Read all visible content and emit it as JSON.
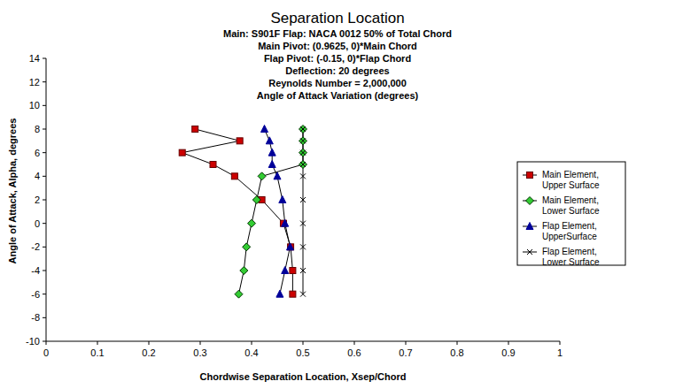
{
  "chart_data": {
    "type": "scatter",
    "title": "Separation Location",
    "subtitle": [
      "Main: S901F  Flap: NACA 0012  50% of Total Chord",
      "Main Pivot: (0.9625, 0)*Main Chord",
      "Flap Pivot: (-0.15, 0)*Flap Chord",
      "Deflection: 20 degrees",
      "Reynolds Number = 2,000,000",
      "Angle of Attack Variation (degrees)"
    ],
    "x_label": "Chordwise Separation Location, Xsep/Chord",
    "y_label": "Angle of Attack, Alpha, degrees",
    "xlim": [
      0,
      1
    ],
    "ylim": [
      -10,
      14
    ],
    "xticks": [
      0,
      0.1,
      0.2,
      0.3,
      0.4,
      0.5,
      0.6,
      0.7,
      0.8,
      0.9,
      1
    ],
    "yticks": [
      -10,
      -8,
      -6,
      -4,
      -2,
      0,
      2,
      4,
      6,
      8,
      10,
      12,
      14
    ],
    "grid": false,
    "legend": "right",
    "line_style": "solid",
    "series": [
      {
        "name": "Main Element, Upper Surface",
        "color": "#cc0000",
        "marker": "square",
        "x": [
          0.29,
          0.377,
          0.265,
          0.325,
          0.367,
          0.42,
          0.462,
          0.476,
          0.48,
          0.48
        ],
        "values": [
          8,
          7,
          6,
          5,
          4,
          2,
          0,
          -2,
          -4,
          -6
        ]
      },
      {
        "name": "Main Element, Lower Surface",
        "color": "#33cc33",
        "marker": "diamond",
        "x": [
          0.5,
          0.5,
          0.5,
          0.5,
          0.42,
          0.41,
          0.4,
          0.39,
          0.385,
          0.375
        ],
        "values": [
          8,
          7,
          6,
          5,
          4,
          2,
          0,
          -2,
          -4,
          -6
        ]
      },
      {
        "name": "Flap Element, UpperSurface",
        "color": "#000099",
        "marker": "triangle",
        "x": [
          0.425,
          0.435,
          0.44,
          0.44,
          0.45,
          0.46,
          0.465,
          0.475,
          0.465,
          0.455
        ],
        "values": [
          8,
          7,
          6,
          5,
          4,
          2,
          0,
          -2,
          -4,
          -6
        ]
      },
      {
        "name": "Flap Element, Lower Surface",
        "color": "#000000",
        "marker": "x",
        "x": [
          0.5,
          0.5,
          0.5,
          0.5,
          0.5,
          0.5,
          0.5,
          0.5,
          0.5,
          0.5
        ],
        "values": [
          8,
          7,
          6,
          5,
          4,
          2,
          0,
          -2,
          -4,
          -6
        ]
      }
    ]
  }
}
